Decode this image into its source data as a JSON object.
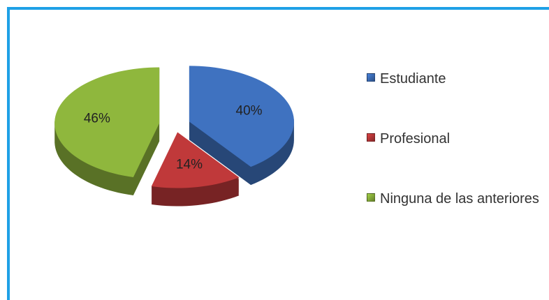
{
  "chart_data": {
    "type": "pie",
    "categories": [
      "Estudiante",
      "Profesional",
      "Ninguna de las anteriores"
    ],
    "values": [
      40,
      14,
      46
    ],
    "value_labels": [
      "40%",
      "14%",
      "46%"
    ],
    "colors": [
      "#3f72c0",
      "#c0393a",
      "#8fb73d"
    ],
    "legend": "right"
  }
}
